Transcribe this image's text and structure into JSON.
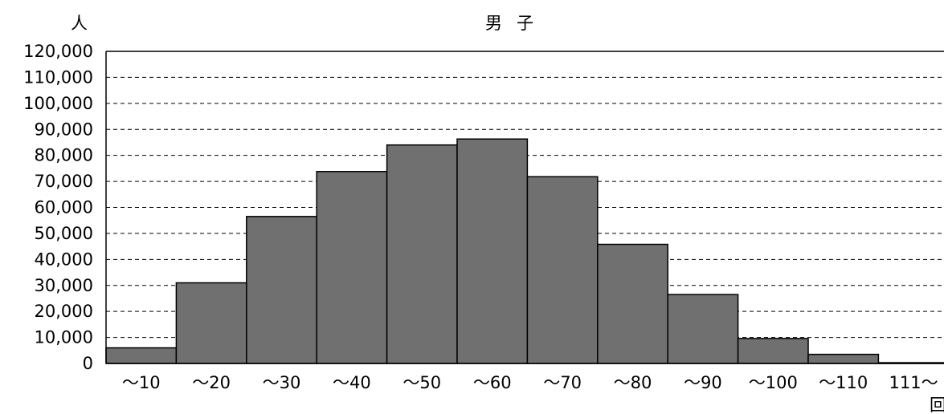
{
  "chart_data": {
    "type": "bar",
    "title": "男子",
    "ylabel": "人",
    "xlabel": "回",
    "categories": [
      "～10",
      "～20",
      "～30",
      "～40",
      "～50",
      "～60",
      "～70",
      "～80",
      "～90",
      "～100",
      "～110",
      "111～"
    ],
    "values": [
      6000,
      31000,
      56500,
      73800,
      84000,
      86300,
      71800,
      45800,
      26500,
      9600,
      3500,
      300
    ],
    "ylim": [
      0,
      120000
    ],
    "yticks": [
      "0",
      "10,000",
      "20,000",
      "30,000",
      "40,000",
      "50,000",
      "60,000",
      "70,000",
      "80,000",
      "90,000",
      "100,000",
      "110,000",
      "120,000"
    ],
    "grid": "dashed horizontal",
    "bar_color": "#707070",
    "bar_edge_color": "#000000"
  }
}
